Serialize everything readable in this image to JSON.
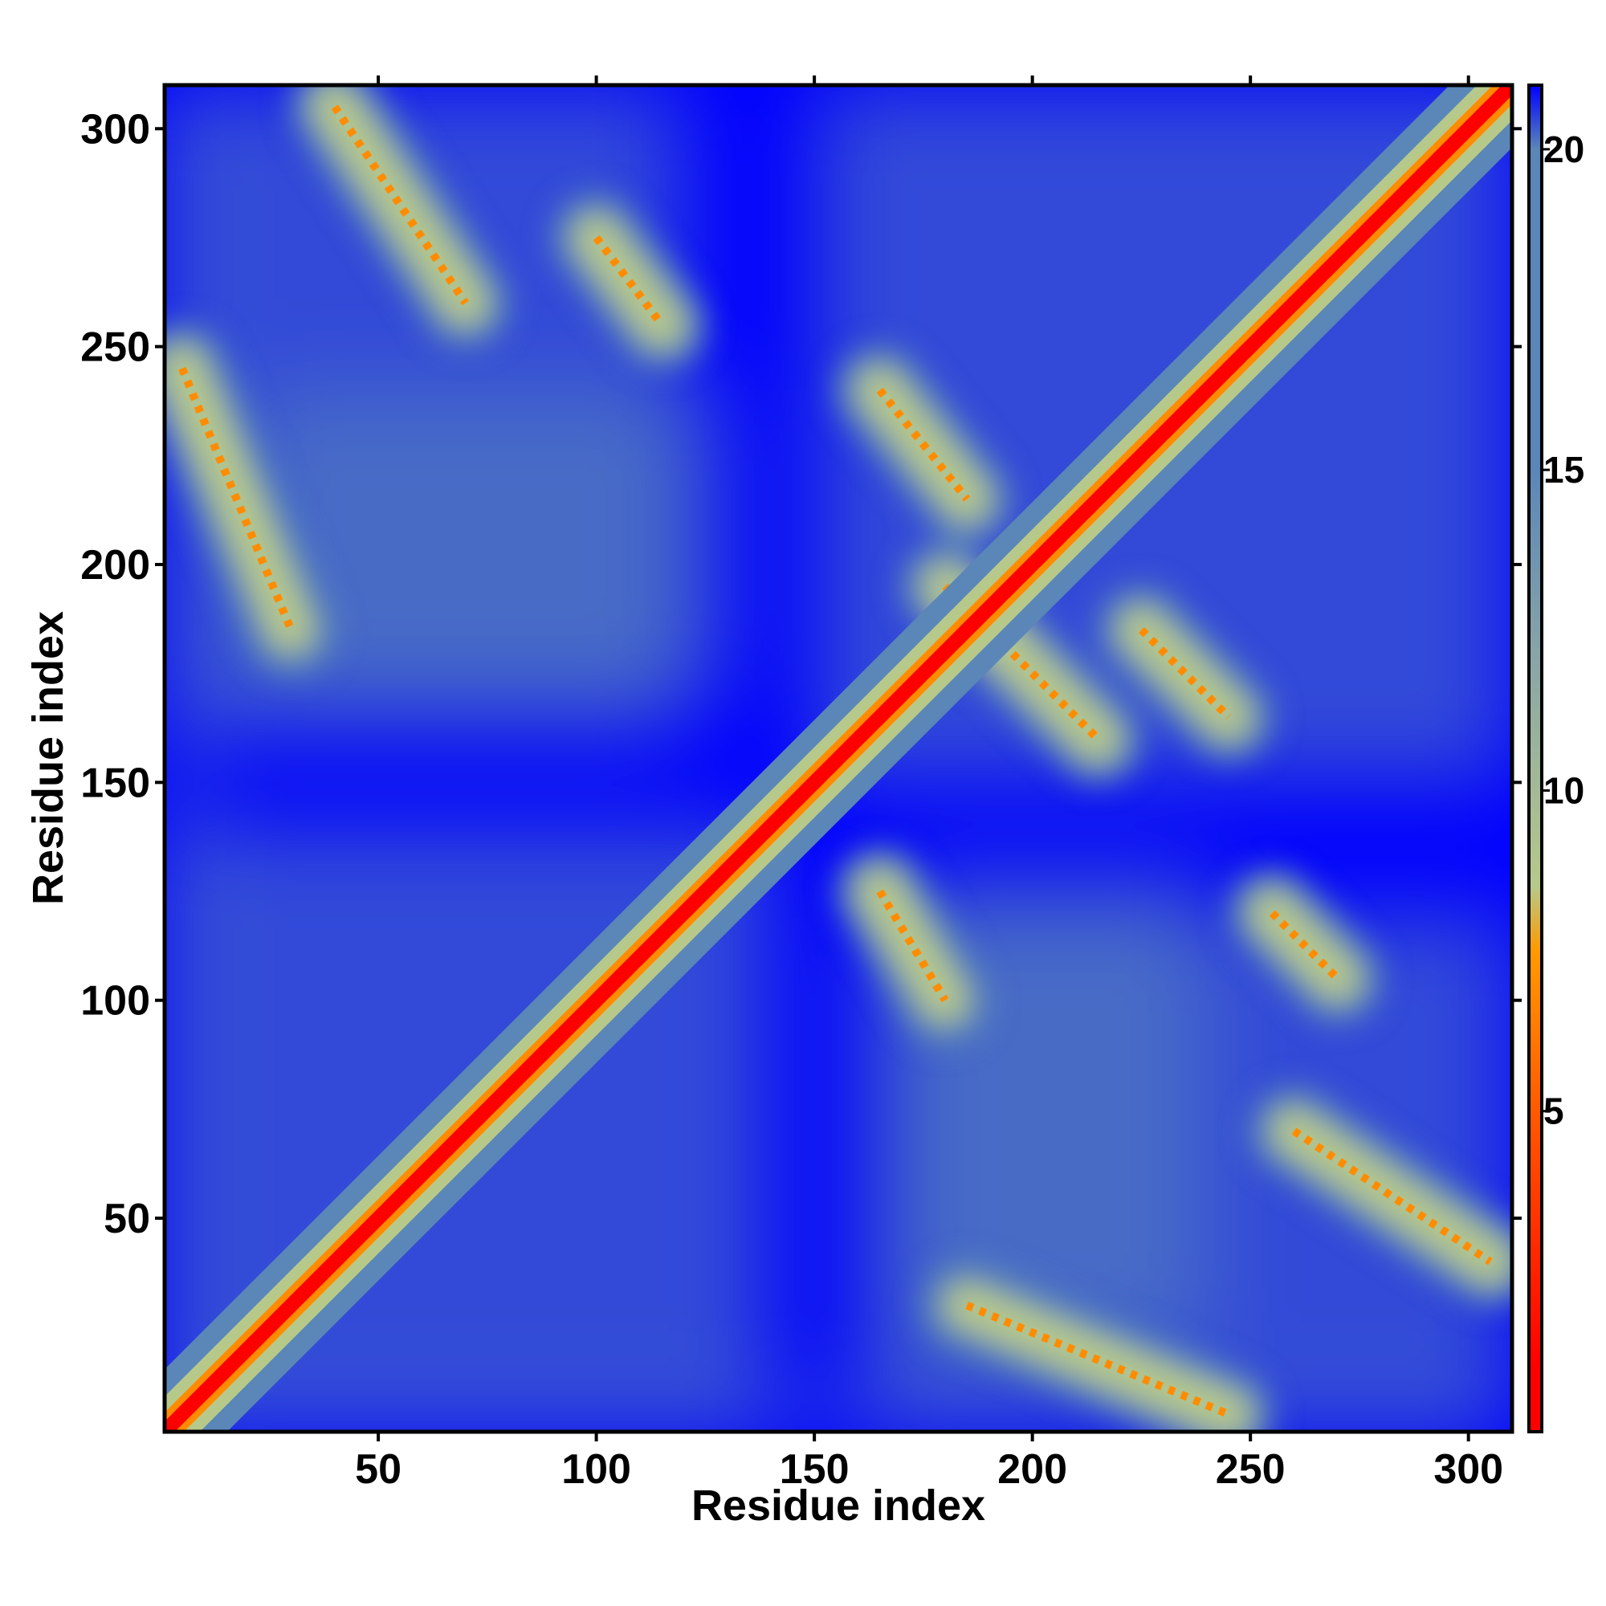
{
  "chart_data": {
    "type": "heatmap",
    "title": "",
    "xlabel": "Residue index",
    "ylabel": "Residue index",
    "xlim": [
      1,
      310
    ],
    "ylim": [
      1,
      310
    ],
    "x_ticks": [
      50,
      100,
      150,
      200,
      250,
      300
    ],
    "y_ticks": [
      50,
      100,
      150,
      200,
      250,
      300
    ],
    "n_residues": 310,
    "matrix_symmetric": true,
    "colorbar": {
      "range": [
        0,
        21
      ],
      "ticks": [
        5,
        10,
        15,
        20
      ],
      "colors": [
        "#ff0000",
        "#ff8c00",
        "#b7c98a",
        "#5b86b8",
        "#0000ff"
      ],
      "color_stops": [
        {
          "value": 1,
          "color": "#ff0000"
        },
        {
          "value": 5,
          "color": "#ff5a00"
        },
        {
          "value": 7.5,
          "color": "#ff9a00"
        },
        {
          "value": 8.5,
          "color": "#b7c98a"
        },
        {
          "value": 12,
          "color": "#8aa6a6"
        },
        {
          "value": 15,
          "color": "#5b86b8"
        },
        {
          "value": 20,
          "color": "#5b86b8"
        },
        {
          "value": 21,
          "color": "#0000ff"
        }
      ]
    },
    "features": [
      {
        "kind": "diagonal",
        "from": 1,
        "to": 310
      },
      {
        "kind": "antiparallel-contact",
        "x_range": [
          40,
          70
        ],
        "y_range": [
          260,
          305
        ]
      },
      {
        "kind": "antiparallel-contact",
        "x_range": [
          100,
          115
        ],
        "y_range": [
          255,
          275
        ]
      },
      {
        "kind": "antiparallel-contact",
        "x_range": [
          5,
          30
        ],
        "y_range": [
          185,
          245
        ]
      },
      {
        "kind": "antiparallel-contact",
        "x_range": [
          165,
          185
        ],
        "y_range": [
          215,
          240
        ]
      },
      {
        "kind": "antiparallel-contact",
        "x_range": [
          180,
          215
        ],
        "y_range": [
          160,
          195
        ]
      },
      {
        "kind": "antiparallel-contact",
        "x_range": [
          225,
          245
        ],
        "y_range": [
          165,
          185
        ]
      },
      {
        "kind": "antiparallel-contact",
        "x_range": [
          255,
          270
        ],
        "y_range": [
          105,
          120
        ]
      },
      {
        "kind": "antiparallel-contact",
        "x_range": [
          260,
          305
        ],
        "y_range": [
          40,
          70
        ]
      },
      {
        "kind": "antiparallel-contact",
        "x_range": [
          185,
          245
        ],
        "y_range": [
          5,
          30
        ]
      },
      {
        "kind": "antiparallel-contact",
        "x_range": [
          165,
          180
        ],
        "y_range": [
          100,
          125
        ]
      }
    ]
  }
}
